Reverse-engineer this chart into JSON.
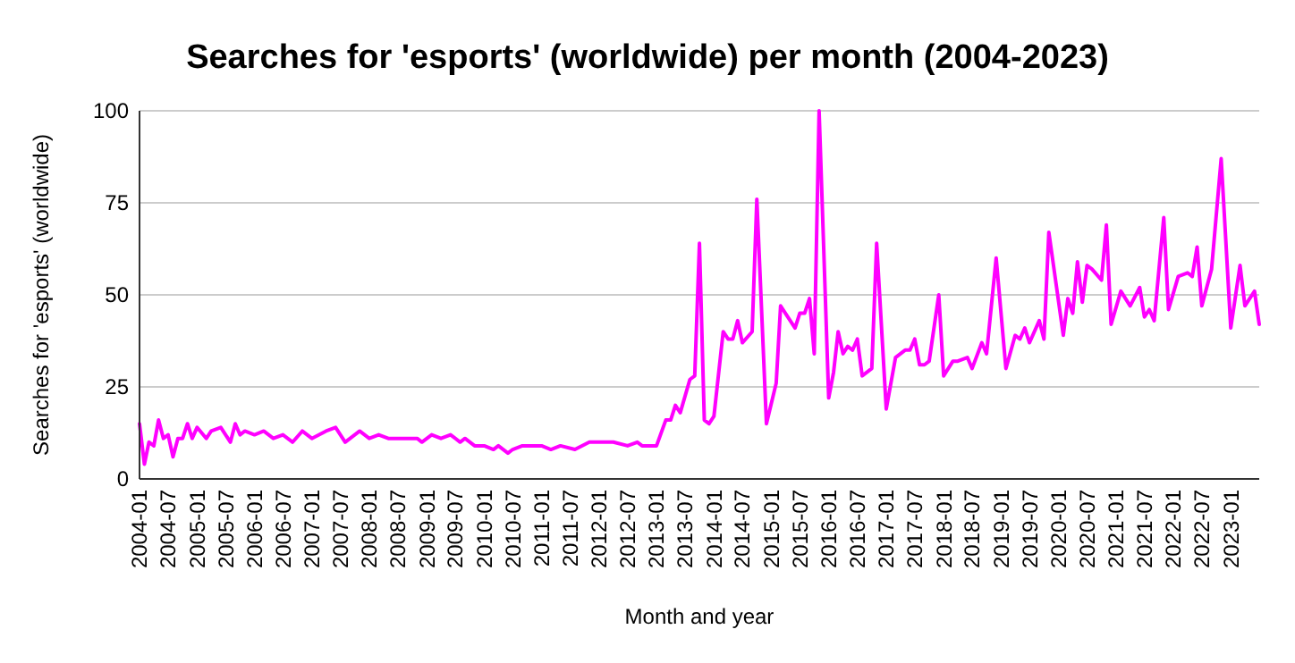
{
  "chart_data": {
    "type": "line",
    "title": "Searches for 'esports' (worldwide) per month (2004-2023)",
    "xlabel": "Month and year",
    "ylabel": "Searches for 'esports' (worldwide)",
    "x": [
      "2004-01",
      "2004-02",
      "2004-03",
      "2004-04",
      "2004-05",
      "2004-06",
      "2004-07",
      "2004-08",
      "2004-09",
      "2004-10",
      "2004-11",
      "2004-12",
      "2005-01",
      "2005-03",
      "2005-04",
      "2005-06",
      "2005-08",
      "2005-09",
      "2005-10",
      "2005-11",
      "2006-01",
      "2006-03",
      "2006-05",
      "2006-07",
      "2006-09",
      "2006-11",
      "2007-01",
      "2007-04",
      "2007-06",
      "2007-08",
      "2007-11",
      "2008-01",
      "2008-03",
      "2008-05",
      "2008-11",
      "2008-12",
      "2009-02",
      "2009-04",
      "2009-06",
      "2009-08",
      "2009-09",
      "2009-11",
      "2010-01",
      "2010-03",
      "2010-04",
      "2010-06",
      "2010-07",
      "2010-09",
      "2011-01",
      "2011-03",
      "2011-05",
      "2011-08",
      "2011-11",
      "2012-04",
      "2012-07",
      "2012-09",
      "2012-10",
      "2013-01",
      "2013-03",
      "2013-04",
      "2013-05",
      "2013-06",
      "2013-08",
      "2013-09",
      "2013-10",
      "2013-11",
      "2013-12",
      "2014-01",
      "2014-03",
      "2014-04",
      "2014-05",
      "2014-06",
      "2014-07",
      "2014-09",
      "2014-10",
      "2014-12",
      "2015-02",
      "2015-03",
      "2015-06",
      "2015-07",
      "2015-08",
      "2015-09",
      "2015-10",
      "2015-11",
      "2016-01",
      "2016-02",
      "2016-03",
      "2016-04",
      "2016-05",
      "2016-06",
      "2016-07",
      "2016-08",
      "2016-10",
      "2016-11",
      "2017-01",
      "2017-03",
      "2017-05",
      "2017-06",
      "2017-07",
      "2017-08",
      "2017-09",
      "2017-10",
      "2017-12",
      "2018-01",
      "2018-03",
      "2018-04",
      "2018-06",
      "2018-07",
      "2018-09",
      "2018-10",
      "2018-12",
      "2019-02",
      "2019-04",
      "2019-05",
      "2019-06",
      "2019-07",
      "2019-09",
      "2019-10",
      "2019-11",
      "2020-02",
      "2020-03",
      "2020-04",
      "2020-05",
      "2020-06",
      "2020-07",
      "2020-08",
      "2020-10",
      "2020-11",
      "2020-12",
      "2021-02",
      "2021-04",
      "2021-06",
      "2021-07",
      "2021-08",
      "2021-09",
      "2021-11",
      "2021-12",
      "2022-02",
      "2022-04",
      "2022-05",
      "2022-06",
      "2022-07",
      "2022-09",
      "2022-11",
      "2023-01",
      "2023-03",
      "2023-04",
      "2023-06",
      "2023-07"
    ],
    "series": [
      {
        "color": "#ff00ff",
        "values": [
          15,
          4,
          10,
          9,
          16,
          11,
          12,
          6,
          11,
          11,
          15,
          11,
          14,
          11,
          13,
          14,
          10,
          15,
          12,
          13,
          12,
          13,
          11,
          12,
          10,
          13,
          11,
          13,
          14,
          10,
          13,
          11,
          12,
          11,
          11,
          10,
          12,
          11,
          12,
          10,
          11,
          9,
          9,
          8,
          9,
          7,
          8,
          9,
          9,
          8,
          9,
          8,
          10,
          10,
          9,
          10,
          9,
          9,
          16,
          16,
          20,
          18,
          27,
          28,
          64,
          16,
          15,
          17,
          40,
          38,
          38,
          43,
          37,
          40,
          76,
          15,
          26,
          47,
          41,
          45,
          45,
          49,
          34,
          100,
          22,
          29,
          40,
          34,
          36,
          35,
          38,
          28,
          30,
          64,
          19,
          33,
          35,
          35,
          38,
          31,
          31,
          32,
          50,
          28,
          32,
          32,
          33,
          30,
          37,
          34,
          60,
          30,
          39,
          38,
          41,
          37,
          43,
          38,
          67,
          39,
          49,
          45,
          59,
          48,
          58,
          57,
          54,
          69,
          42,
          51,
          47,
          52,
          44,
          46,
          43,
          71,
          46,
          55,
          56,
          55,
          63,
          47,
          57,
          87,
          41,
          58,
          47,
          51,
          42
        ]
      }
    ],
    "xlim": [
      "2004-01",
      "2023-07"
    ],
    "xticks": [
      "2004-01",
      "2004-07",
      "2005-01",
      "2005-07",
      "2006-01",
      "2006-07",
      "2007-01",
      "2007-07",
      "2008-01",
      "2008-07",
      "2009-01",
      "2009-07",
      "2010-01",
      "2010-07",
      "2011-01",
      "2011-07",
      "2012-01",
      "2012-07",
      "2013-01",
      "2013-07",
      "2014-01",
      "2014-07",
      "2015-01",
      "2015-07",
      "2016-01",
      "2016-07",
      "2017-01",
      "2017-07",
      "2018-01",
      "2018-07",
      "2019-01",
      "2019-07",
      "2020-01",
      "2020-07",
      "2021-01",
      "2021-07",
      "2022-01",
      "2022-07",
      "2023-01"
    ],
    "ylim": [
      0,
      100
    ],
    "yticks": [
      0,
      25,
      50,
      75,
      100
    ],
    "grid": "y",
    "marker": "none",
    "line_style": "solid"
  }
}
